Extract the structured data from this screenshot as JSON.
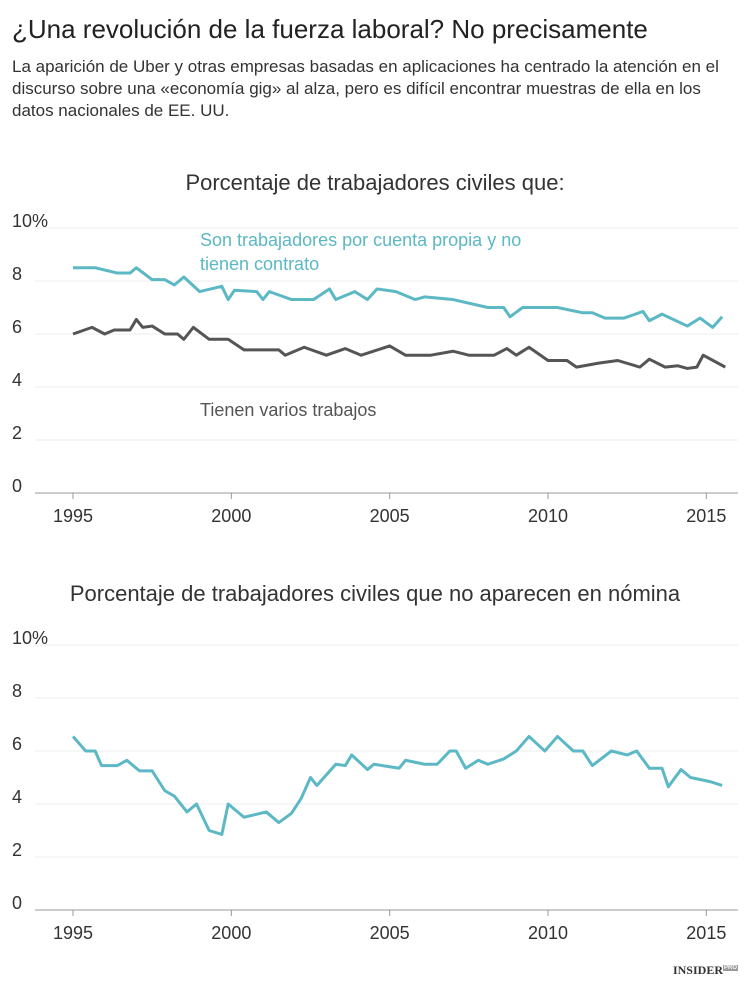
{
  "header": {
    "title": "¿Una revolución de la fuerza laboral? No precisamente",
    "subtitle": "La aparición de Uber y otras empresas basadas en aplicaciones ha centrado la atención en el discurso sobre una «economía gig» al alza, pero es difícil encontrar muestras de ella en los datos nacionales de EE. UU."
  },
  "chart_data": [
    {
      "type": "line",
      "title": "Porcentaje de trabajadores civiles que:",
      "xlim": [
        1993.8,
        2016.0
      ],
      "xticks": [
        1995,
        2000,
        2005,
        2010,
        2015
      ],
      "ylim": [
        0,
        10
      ],
      "yticks": [
        0,
        2,
        4,
        6,
        8,
        {
          "value": 10,
          "label": "10%"
        }
      ],
      "grid": true,
      "series": [
        {
          "name": "Son trabajadores por cuenta propia y no tienen contrato",
          "color": "#5bb8c4",
          "x": [
            1995.0,
            1995.7,
            1996.4,
            1996.8,
            1997.0,
            1997.5,
            1997.9,
            1998.2,
            1998.5,
            1999.0,
            1999.7,
            1999.9,
            2000.1,
            2000.8,
            2001.0,
            2001.2,
            2001.9,
            2002.6,
            2003.1,
            2003.3,
            2003.9,
            2004.3,
            2004.6,
            2005.2,
            2005.8,
            2006.1,
            2007.0,
            2008.1,
            2008.6,
            2008.8,
            2009.2,
            2010.3,
            2011.1,
            2011.4,
            2011.8,
            2012.4,
            2013.0,
            2013.2,
            2013.6,
            2014.4,
            2014.8,
            2015.2,
            2015.5
          ],
          "values": [
            8.5,
            8.5,
            8.3,
            8.3,
            8.5,
            8.05,
            8.05,
            7.85,
            8.15,
            7.6,
            7.8,
            7.3,
            7.65,
            7.6,
            7.3,
            7.6,
            7.3,
            7.3,
            7.7,
            7.3,
            7.6,
            7.3,
            7.7,
            7.6,
            7.3,
            7.4,
            7.3,
            7.0,
            7.0,
            6.65,
            7.0,
            7.0,
            6.8,
            6.8,
            6.6,
            6.6,
            6.85,
            6.5,
            6.75,
            6.3,
            6.6,
            6.25,
            6.65
          ]
        },
        {
          "name": "Tienen varios trabajos",
          "color": "#555555",
          "x": [
            1995.0,
            1995.6,
            1996.0,
            1996.3,
            1996.8,
            1997.0,
            1997.2,
            1997.5,
            1997.9,
            1998.3,
            1998.5,
            1998.8,
            1999.3,
            1999.9,
            2000.4,
            2001.5,
            2001.7,
            2002.3,
            2003.0,
            2003.6,
            2004.1,
            2005.0,
            2005.5,
            2006.3,
            2007.0,
            2007.5,
            2008.3,
            2008.7,
            2009.0,
            2009.4,
            2010.0,
            2010.6,
            2010.9,
            2011.6,
            2012.2,
            2012.9,
            2013.2,
            2013.7,
            2014.1,
            2014.4,
            2014.7,
            2014.9,
            2015.6
          ],
          "values": [
            6.0,
            6.25,
            6.0,
            6.15,
            6.15,
            6.55,
            6.25,
            6.3,
            6.0,
            6.0,
            5.8,
            6.25,
            5.8,
            5.8,
            5.4,
            5.4,
            5.2,
            5.5,
            5.2,
            5.45,
            5.2,
            5.55,
            5.2,
            5.2,
            5.35,
            5.2,
            5.2,
            5.45,
            5.2,
            5.5,
            5.0,
            5.0,
            4.75,
            4.9,
            5.0,
            4.75,
            5.05,
            4.75,
            4.8,
            4.7,
            4.75,
            5.2,
            4.75
          ]
        }
      ]
    },
    {
      "type": "line",
      "title": "Porcentaje de trabajadores civiles que no aparecen en nómina",
      "xlim": [
        1993.8,
        2016.0
      ],
      "xticks": [
        1995,
        2000,
        2005,
        2010,
        2015
      ],
      "ylim": [
        0,
        10
      ],
      "yticks": [
        0,
        2,
        4,
        6,
        8,
        {
          "value": 10,
          "label": "10%"
        }
      ],
      "grid": true,
      "series": [
        {
          "color": "#5bb8c4",
          "x": [
            1995.0,
            1995.4,
            1995.7,
            1995.9,
            1996.4,
            1996.7,
            1997.1,
            1997.5,
            1997.9,
            1998.2,
            1998.6,
            1998.9,
            1999.3,
            1999.7,
            1999.9,
            2000.4,
            2001.1,
            2001.5,
            2001.9,
            2002.2,
            2002.5,
            2002.7,
            2003.3,
            2003.6,
            2003.8,
            2004.3,
            2004.5,
            2005.3,
            2005.5,
            2006.1,
            2006.5,
            2006.9,
            2007.1,
            2007.4,
            2007.8,
            2008.1,
            2008.6,
            2009.0,
            2009.4,
            2009.9,
            2010.3,
            2010.8,
            2011.1,
            2011.4,
            2012.0,
            2012.5,
            2012.8,
            2013.2,
            2013.6,
            2013.8,
            2014.2,
            2014.5,
            2015.1,
            2015.5
          ],
          "values": [
            6.55,
            6.0,
            6.0,
            5.45,
            5.45,
            5.65,
            5.25,
            5.25,
            4.5,
            4.3,
            3.7,
            4.0,
            3.0,
            2.85,
            4.0,
            3.5,
            3.7,
            3.3,
            3.65,
            4.2,
            5.0,
            4.7,
            5.5,
            5.45,
            5.85,
            5.3,
            5.5,
            5.35,
            5.65,
            5.5,
            5.5,
            6.0,
            6.0,
            5.35,
            5.65,
            5.5,
            5.7,
            6.0,
            6.55,
            6.0,
            6.55,
            6.0,
            6.0,
            5.45,
            6.0,
            5.85,
            6.0,
            5.35,
            5.35,
            4.65,
            5.3,
            5.0,
            4.85,
            4.7
          ]
        }
      ]
    }
  ],
  "footer": {
    "logo": "INSIDER",
    "badge": "PRO"
  }
}
